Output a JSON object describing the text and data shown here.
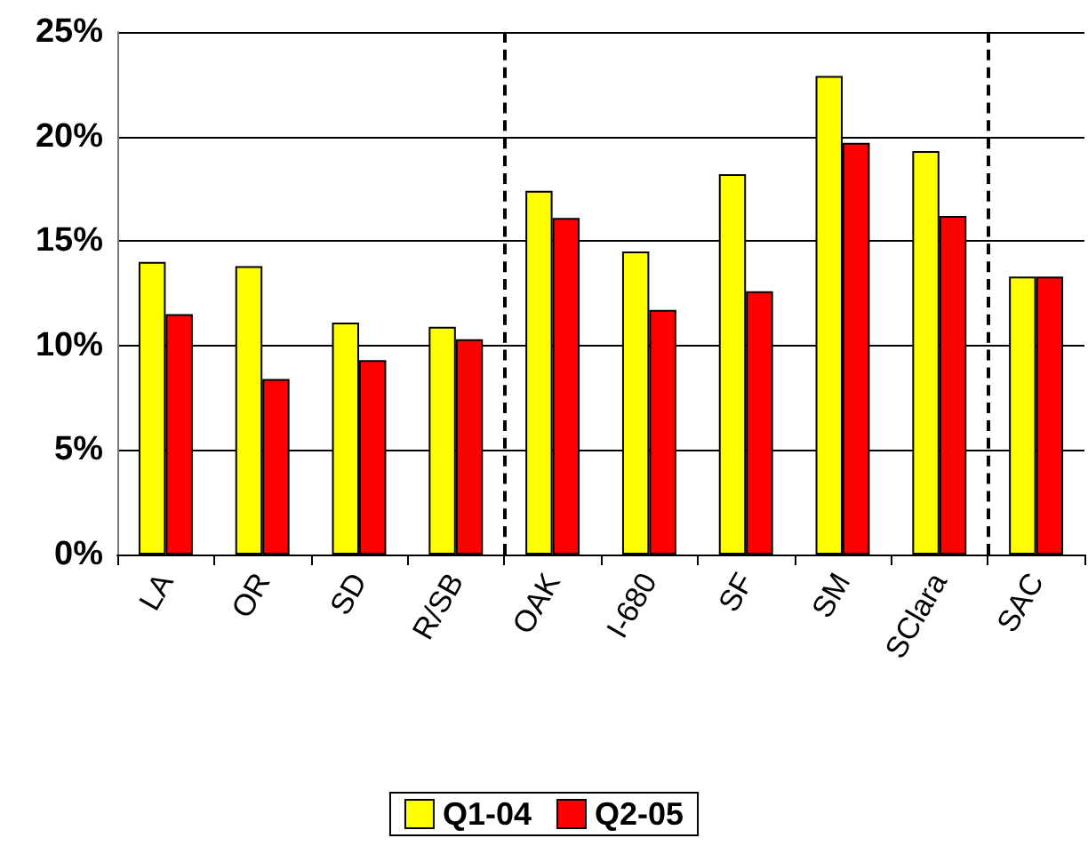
{
  "chart_data": {
    "type": "bar",
    "categories": [
      "LA",
      "OR",
      "SD",
      "R/SB",
      "OAK",
      "I-680",
      "SF",
      "SM",
      "SClara",
      "SAC"
    ],
    "series": [
      {
        "name": "Q1-04",
        "color": "#ffff00",
        "values": [
          14.0,
          13.8,
          11.1,
          10.9,
          17.4,
          14.5,
          18.2,
          22.9,
          19.3,
          13.3
        ]
      },
      {
        "name": "Q2-05",
        "color": "#ff0000",
        "values": [
          11.5,
          8.4,
          9.3,
          10.3,
          16.1,
          11.7,
          12.6,
          19.7,
          16.2,
          13.3
        ]
      }
    ],
    "ylim": [
      0,
      25
    ],
    "yticks": [
      {
        "value": 0,
        "label": "0%"
      },
      {
        "value": 5,
        "label": "5%"
      },
      {
        "value": 10,
        "label": "10%"
      },
      {
        "value": 15,
        "label": "15%"
      },
      {
        "value": 20,
        "label": "20%"
      },
      {
        "value": 25,
        "label": "25%"
      }
    ],
    "grid": "y",
    "legend": "bottom"
  }
}
